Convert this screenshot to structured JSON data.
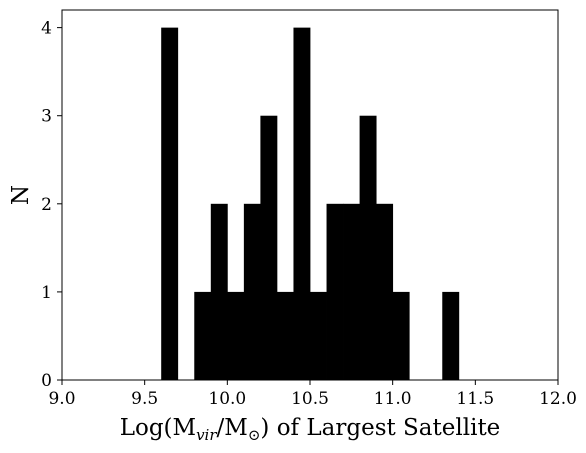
{
  "chart_data": {
    "type": "bar",
    "title": "",
    "xlabel": {
      "prefix": "Log(M",
      "sub1": "vir",
      "mid": "/M",
      "sub2": "⊙",
      "suffix": ") of Largest Satellite"
    },
    "ylabel": "N",
    "xlim": [
      9.0,
      12.0
    ],
    "ylim": [
      0,
      4.2
    ],
    "bin_width": 0.1,
    "bar_color": "#000000",
    "grid": false,
    "xticks": [
      9.0,
      9.5,
      10.0,
      10.5,
      11.0,
      11.5,
      12.0
    ],
    "xtick_labels": [
      "9.0",
      "9.5",
      "10.0",
      "10.5",
      "11.0",
      "11.5",
      "12.0"
    ],
    "yticks": [
      0,
      1,
      2,
      3,
      4
    ],
    "ytick_labels": [
      "0",
      "1",
      "2",
      "3",
      "4"
    ],
    "bins": [
      {
        "x0": 9.6,
        "count": 4
      },
      {
        "x0": 9.8,
        "count": 1
      },
      {
        "x0": 9.9,
        "count": 2
      },
      {
        "x0": 10.0,
        "count": 1
      },
      {
        "x0": 10.1,
        "count": 2
      },
      {
        "x0": 10.2,
        "count": 3
      },
      {
        "x0": 10.3,
        "count": 1
      },
      {
        "x0": 10.4,
        "count": 4
      },
      {
        "x0": 10.5,
        "count": 1
      },
      {
        "x0": 10.6,
        "count": 2
      },
      {
        "x0": 10.7,
        "count": 2
      },
      {
        "x0": 10.8,
        "count": 3
      },
      {
        "x0": 10.9,
        "count": 2
      },
      {
        "x0": 11.0,
        "count": 1
      },
      {
        "x0": 11.3,
        "count": 1
      }
    ]
  }
}
